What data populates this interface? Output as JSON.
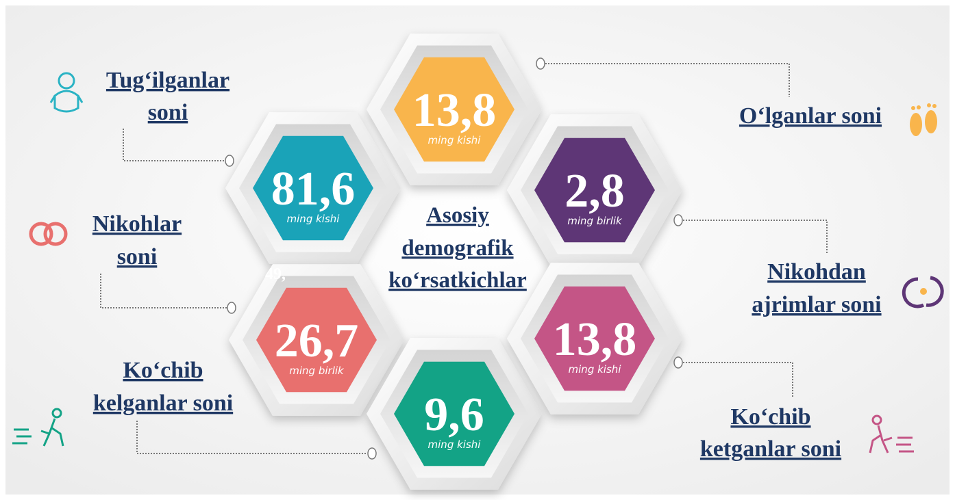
{
  "center_title": [
    "Asosiy",
    "demografik",
    "ko‘rsatkichlar"
  ],
  "stray_text": "49,",
  "indicators": [
    {
      "label": [
        "Tug‘ilganlar",
        "soni"
      ],
      "value": "81,6",
      "unit": "ming kishi",
      "color": "#1aa3b8"
    },
    {
      "label": [
        "O‘lganlar soni"
      ],
      "value": "13,8",
      "unit": "ming kishi",
      "color": "#f9b54c"
    },
    {
      "label": [
        "Nikohlar",
        "soni"
      ],
      "value": "26,7",
      "unit": "ming birlik",
      "color": "#e8706e"
    },
    {
      "label": [
        "Nikohdan",
        "ajrimlar soni"
      ],
      "value": "2,8",
      "unit": "ming birlik",
      "color": "#5e3676"
    },
    {
      "label": [
        "Ko‘chib",
        "kelganlar soni"
      ],
      "value": "9,6",
      "unit": "ming kishi",
      "color": "#13a386"
    },
    {
      "label": [
        "Ko‘chib",
        "ketganlar soni"
      ],
      "value": "13,8",
      "unit": "ming kishi",
      "color": "#c45586"
    }
  ]
}
